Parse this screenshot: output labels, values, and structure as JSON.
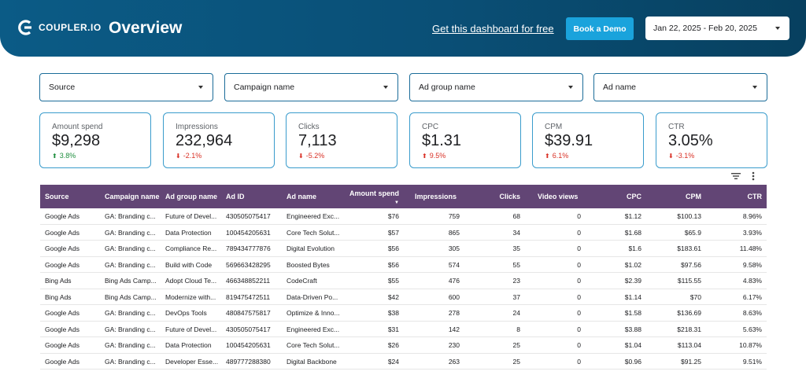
{
  "header": {
    "logo_text": "COUPLER.IO",
    "title": "Overview",
    "free_link": "Get this dashboard for free",
    "demo_button": "Book a Demo",
    "date_range": "Jan 22, 2025 - Feb 20, 2025"
  },
  "filters": [
    {
      "label": "Source"
    },
    {
      "label": "Campaign name"
    },
    {
      "label": "Ad group name"
    },
    {
      "label": "Ad name"
    }
  ],
  "kpis": [
    {
      "label": "Amount spend",
      "value": "$9,298",
      "delta": "3.8%",
      "direction": "up"
    },
    {
      "label": "Impressions",
      "value": "232,964",
      "delta": "-2.1%",
      "direction": "down"
    },
    {
      "label": "Clicks",
      "value": "7,113",
      "delta": "-5.2%",
      "direction": "down"
    },
    {
      "label": "CPC",
      "value": "$1.31",
      "delta": "9.5%",
      "direction": "up"
    },
    {
      "label": "CPM",
      "value": "$39.91",
      "delta": "6.1%",
      "direction": "up"
    },
    {
      "label": "CTR",
      "value": "3.05%",
      "delta": "-3.1%",
      "direction": "down"
    }
  ],
  "colors": {
    "header": "#0a4f76",
    "accent_button": "#1aa3dc",
    "table_header": "#624575",
    "up": "#1e8e3e",
    "down": "#d93025"
  },
  "table": {
    "columns": [
      "Source",
      "Campaign name",
      "Ad group name",
      "Ad ID",
      "Ad name",
      "Amount spend",
      "Impressions",
      "Clicks",
      "Video views",
      "CPC",
      "CPM",
      "CTR"
    ],
    "rows": [
      [
        "Google Ads",
        "GA: Branding c...",
        "Future of Devel...",
        "430505075417",
        "Engineered Exc...",
        "$76",
        "759",
        "68",
        "0",
        "$1.12",
        "$100.13",
        "8.96%"
      ],
      [
        "Google Ads",
        "GA: Branding c...",
        "Data Protection",
        "100454205631",
        "Core Tech Solut...",
        "$57",
        "865",
        "34",
        "0",
        "$1.68",
        "$65.9",
        "3.93%"
      ],
      [
        "Google Ads",
        "GA: Branding c...",
        "Compliance Re...",
        "789434777876",
        "Digital Evolution",
        "$56",
        "305",
        "35",
        "0",
        "$1.6",
        "$183.61",
        "11.48%"
      ],
      [
        "Google Ads",
        "GA: Branding c...",
        "Build with Code",
        "569663428295",
        "Boosted Bytes",
        "$56",
        "574",
        "55",
        "0",
        "$1.02",
        "$97.56",
        "9.58%"
      ],
      [
        "Bing Ads",
        "Bing Ads Camp...",
        "Adopt Cloud Te...",
        "466348852211",
        "CodeCraft",
        "$55",
        "476",
        "23",
        "0",
        "$2.39",
        "$115.55",
        "4.83%"
      ],
      [
        "Bing Ads",
        "Bing Ads Camp...",
        "Modernize with...",
        "819475472511",
        "Data-Driven Po...",
        "$42",
        "600",
        "37",
        "0",
        "$1.14",
        "$70",
        "6.17%"
      ],
      [
        "Google Ads",
        "GA: Branding c...",
        "DevOps Tools",
        "480847575817",
        "Optimize & Inno...",
        "$38",
        "278",
        "24",
        "0",
        "$1.58",
        "$136.69",
        "8.63%"
      ],
      [
        "Google Ads",
        "GA: Branding c...",
        "Future of Devel...",
        "430505075417",
        "Engineered Exc...",
        "$31",
        "142",
        "8",
        "0",
        "$3.88",
        "$218.31",
        "5.63%"
      ],
      [
        "Google Ads",
        "GA: Branding c...",
        "Data Protection",
        "100454205631",
        "Core Tech Solut...",
        "$26",
        "230",
        "25",
        "0",
        "$1.04",
        "$113.04",
        "10.87%"
      ],
      [
        "Google Ads",
        "GA: Branding c...",
        "Developer Esse...",
        "489777288380",
        "Digital Backbone",
        "$24",
        "263",
        "25",
        "0",
        "$0.96",
        "$91.25",
        "9.51%"
      ]
    ]
  }
}
